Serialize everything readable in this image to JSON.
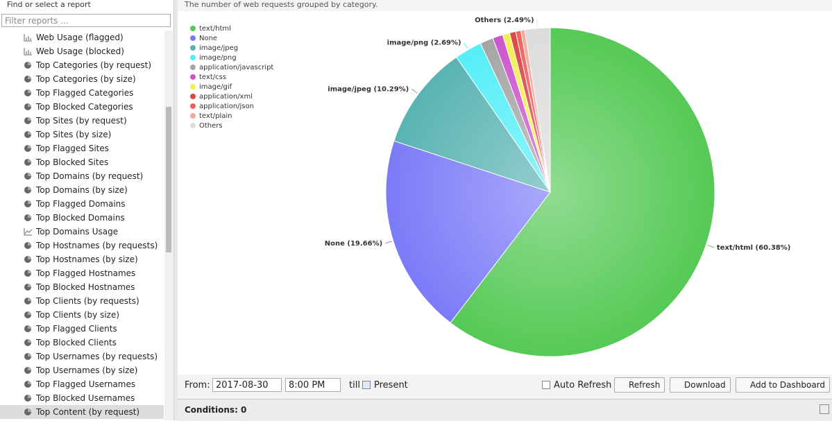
{
  "sidebar": {
    "title": "Find or select a report",
    "filter_placeholder": "Filter reports ...",
    "items": [
      "Web Usage (flagged)",
      "Web Usage (blocked)",
      "Top Categories (by request)",
      "Top Categories (by size)",
      "Top Flagged Categories",
      "Top Blocked Categories",
      "Top Sites (by request)",
      "Top Sites (by size)",
      "Top Flagged Sites",
      "Top Blocked Sites",
      "Top Domains (by request)",
      "Top Domains (by size)",
      "Top Flagged Domains",
      "Top Blocked Domains",
      "Top Domains Usage",
      "Top Hostnames (by requests)",
      "Top Hostnames (by size)",
      "Top Flagged Hostnames",
      "Top Blocked Hostnames",
      "Top Clients (by requests)",
      "Top Clients (by size)",
      "Top Flagged Clients",
      "Top Blocked Clients",
      "Top Usernames (by requests)",
      "Top Usernames (by size)",
      "Top Flagged Usernames",
      "Top Blocked Usernames",
      "Top Content (by request)"
    ]
  },
  "report": {
    "description": "The number of web requests grouped by category.",
    "chart_data": {
      "type": "pie",
      "categories": [
        "text/html",
        "None",
        "image/jpeg",
        "image/png",
        "application/javascript",
        "text/css",
        "image/gif",
        "application/xml",
        "application/json",
        "text/plain",
        "Others"
      ],
      "values": [
        60.38,
        19.66,
        10.29,
        2.69,
        1.3,
        1.0,
        0.7,
        0.6,
        0.5,
        0.39,
        2.49
      ],
      "value_labels": [
        "text/html (60.38%)",
        "None (19.66%)",
        "image/jpeg (10.29%)",
        "image/png (2.69%)",
        null,
        null,
        null,
        null,
        null,
        null,
        "Others (2.49%)"
      ],
      "colors": [
        "#55c955",
        "#7b7bf8",
        "#5ab3b3",
        "#55eef8",
        "#a5a5a5",
        "#cc55cc",
        "#f3ef55",
        "#d84848",
        "#ef6262",
        "#f6a898",
        "#dcdcdc"
      ],
      "legend": "top-left"
    }
  },
  "toolbar": {
    "from_label": "From:",
    "date": "2017-08-30",
    "time": "8:00 PM",
    "till_label": "till",
    "present_label": "Present",
    "auto_refresh_label": "Auto Refresh",
    "refresh": "Refresh",
    "download": "Download",
    "add_to_dashboard": "Add to Dashboard"
  },
  "conditions": "Conditions: 0"
}
